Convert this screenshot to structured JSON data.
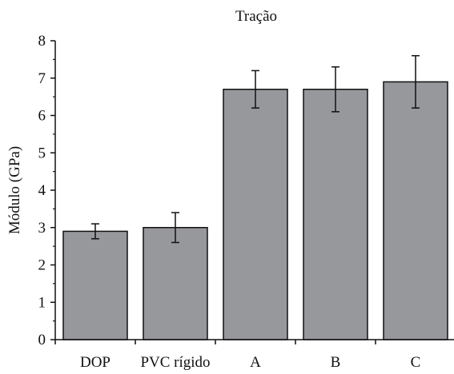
{
  "chart_data": {
    "type": "bar",
    "title": "Tração",
    "xlabel": "",
    "ylabel": "Módulo (GPa)",
    "categories": [
      "DOP",
      "PVC rígido",
      "A",
      "B",
      "C"
    ],
    "values": [
      2.9,
      3.0,
      6.7,
      6.7,
      6.9
    ],
    "error_low": [
      2.7,
      2.6,
      6.2,
      6.1,
      6.2
    ],
    "error_high": [
      3.1,
      3.4,
      7.2,
      7.3,
      7.6
    ],
    "ylim": [
      0,
      8
    ],
    "yticks": [
      0,
      1,
      2,
      3,
      4,
      5,
      6,
      7,
      8
    ],
    "grid": false,
    "legend": "none",
    "colors": {
      "bar_fill": "#97989c",
      "bar_stroke": "#111111",
      "axis": "#111111",
      "error_bar": "#111111"
    }
  }
}
